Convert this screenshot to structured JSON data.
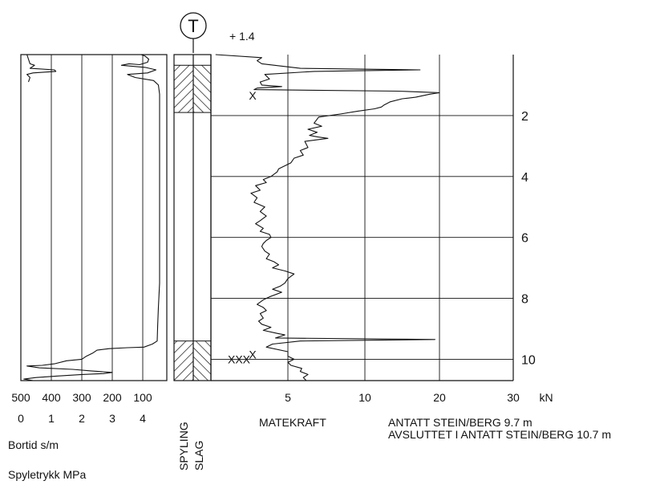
{
  "header": {
    "symbol": "T",
    "elevation": "+ 1.4"
  },
  "left_panel": {
    "bortid_ticks": [
      "500",
      "400",
      "300",
      "200",
      "100"
    ],
    "spyletrykk_ticks": [
      "0",
      "1",
      "2",
      "3",
      "4"
    ],
    "bortid_label": "Bortid s/m",
    "spyletrykk_label": "Spyletrykk MPa"
  },
  "middle_strip": {
    "label_spyling": "SPYLING",
    "label_slag": "SLAG",
    "hatched_intervals": [
      [
        0.35,
        1.9
      ],
      [
        9.4,
        10.7
      ]
    ]
  },
  "right_panel": {
    "x_ticks": [
      "5",
      "10",
      "20",
      "30"
    ],
    "x_unit": "kN",
    "x_label": "MATEKRAFT",
    "depth_ticks": [
      "2",
      "4",
      "6",
      "8",
      "10"
    ],
    "markers": [
      {
        "text": "X",
        "depth": 1.35
      },
      {
        "text": "X",
        "depth": 9.85
      },
      {
        "text": "XXX",
        "depth": 10.0
      }
    ],
    "notes": [
      "ANTATT STEIN/BERG 9.7 m",
      "AVSLUTTET I ANTATT STEIN/BERG 10.7 m"
    ]
  },
  "chart_data": [
    {
      "type": "line",
      "title": "",
      "xlabel": "MATEKRAFT",
      "x_unit": "kN",
      "ylabel": "",
      "x_ticks": [
        5,
        10,
        20,
        30
      ],
      "ylim": [
        0,
        10.7
      ],
      "y_inverted": true,
      "series": [
        {
          "points": [
            [
              0.3,
              0.0
            ],
            [
              3.3,
              0.1
            ],
            [
              3.0,
              0.2
            ],
            [
              3.3,
              0.3
            ],
            [
              5.8,
              0.45
            ],
            [
              17.4,
              0.5
            ],
            [
              6.7,
              0.55
            ],
            [
              3.5,
              0.65
            ],
            [
              3.8,
              0.8
            ],
            [
              3.2,
              0.9
            ],
            [
              3.3,
              1.0
            ],
            [
              4.6,
              1.05
            ],
            [
              3.0,
              1.1
            ],
            [
              2.8,
              1.15
            ],
            [
              14.4,
              1.2
            ],
            [
              20.0,
              1.25
            ],
            [
              18.7,
              1.3
            ],
            [
              16.8,
              1.4
            ],
            [
              15.0,
              1.45
            ],
            [
              13.4,
              1.55
            ],
            [
              12.6,
              1.65
            ],
            [
              12.2,
              1.72
            ],
            [
              11.3,
              1.78
            ],
            [
              9.5,
              1.86
            ],
            [
              8.4,
              1.95
            ],
            [
              7.0,
              2.05
            ],
            [
              6.7,
              2.25
            ],
            [
              7.2,
              2.35
            ],
            [
              6.3,
              2.45
            ],
            [
              6.9,
              2.55
            ],
            [
              6.4,
              2.65
            ],
            [
              6.9,
              2.7
            ],
            [
              7.6,
              2.75
            ],
            [
              6.1,
              2.85
            ],
            [
              6.3,
              3.05
            ],
            [
              5.8,
              3.15
            ],
            [
              6.0,
              3.3
            ],
            [
              5.4,
              3.4
            ],
            [
              5.2,
              3.55
            ],
            [
              4.8,
              3.65
            ],
            [
              4.4,
              3.75
            ],
            [
              4.3,
              3.85
            ],
            [
              3.9,
              4.0
            ],
            [
              3.4,
              4.1
            ],
            [
              3.6,
              4.2
            ],
            [
              2.9,
              4.3
            ],
            [
              3.2,
              4.45
            ],
            [
              2.6,
              4.55
            ],
            [
              3.0,
              4.7
            ],
            [
              2.8,
              4.85
            ],
            [
              3.5,
              5.0
            ],
            [
              3.2,
              5.15
            ],
            [
              3.6,
              5.3
            ],
            [
              3.2,
              5.45
            ],
            [
              2.9,
              5.55
            ],
            [
              3.4,
              5.7
            ],
            [
              3.2,
              5.8
            ],
            [
              3.8,
              5.9
            ],
            [
              3.9,
              6.0
            ],
            [
              3.6,
              6.1
            ],
            [
              3.4,
              6.2
            ],
            [
              3.3,
              6.3
            ],
            [
              3.5,
              6.45
            ],
            [
              3.8,
              6.55
            ],
            [
              3.6,
              6.7
            ],
            [
              4.1,
              6.8
            ],
            [
              4.4,
              6.9
            ],
            [
              4.0,
              7.0
            ],
            [
              4.8,
              7.1
            ],
            [
              5.4,
              7.2
            ],
            [
              5.0,
              7.35
            ],
            [
              4.8,
              7.5
            ],
            [
              4.5,
              7.6
            ],
            [
              4.0,
              7.7
            ],
            [
              4.6,
              7.8
            ],
            [
              3.8,
              7.95
            ],
            [
              3.4,
              8.05
            ],
            [
              3.0,
              8.2
            ],
            [
              3.4,
              8.3
            ],
            [
              3.6,
              8.4
            ],
            [
              3.2,
              8.5
            ],
            [
              3.4,
              8.65
            ],
            [
              3.1,
              8.75
            ],
            [
              3.3,
              8.85
            ],
            [
              3.9,
              8.95
            ],
            [
              3.4,
              9.05
            ],
            [
              4.3,
              9.15
            ],
            [
              4.8,
              9.2
            ],
            [
              4.2,
              9.3
            ],
            [
              19.4,
              9.35
            ],
            [
              5.8,
              9.4
            ],
            [
              4.0,
              9.5
            ],
            [
              3.6,
              9.6
            ],
            [
              5.0,
              9.75
            ],
            [
              5.0,
              9.9
            ],
            [
              5.4,
              10.0
            ],
            [
              5.0,
              10.1
            ],
            [
              5.2,
              10.2
            ],
            [
              5.9,
              10.3
            ],
            [
              5.8,
              10.4
            ],
            [
              6.3,
              10.5
            ],
            [
              6.0,
              10.6
            ],
            [
              6.2,
              10.7
            ]
          ]
        }
      ]
    },
    {
      "type": "line",
      "title": "",
      "xlabel": "Bortid s/m",
      "x_ticks": [
        500,
        400,
        300,
        200,
        100
      ],
      "x_reversed": true,
      "ylim": [
        0,
        10.7
      ],
      "y_inverted": true,
      "series": [
        {
          "points": [
            [
              105,
              0.0
            ],
            [
              90,
              0.05
            ],
            [
              75,
              0.15
            ],
            [
              80,
              0.25
            ],
            [
              110,
              0.33
            ],
            [
              145,
              0.3
            ],
            [
              170,
              0.35
            ],
            [
              90,
              0.42
            ],
            [
              45,
              0.5
            ],
            [
              80,
              0.6
            ],
            [
              150,
              0.65
            ],
            [
              125,
              0.75
            ],
            [
              55,
              0.85
            ],
            [
              35,
              1.0
            ],
            [
              30,
              1.3
            ],
            [
              30,
              2.0
            ],
            [
              30,
              4.0
            ],
            [
              30,
              6.0
            ],
            [
              30,
              7.5
            ],
            [
              35,
              8.3
            ],
            [
              38,
              8.9
            ],
            [
              40,
              9.4
            ],
            [
              60,
              9.5
            ],
            [
              95,
              9.6
            ],
            [
              150,
              9.62
            ],
            [
              210,
              9.65
            ],
            [
              250,
              9.7
            ],
            [
              265,
              9.8
            ],
            [
              285,
              9.9
            ],
            [
              300,
              10.0
            ],
            [
              350,
              10.05
            ],
            [
              390,
              10.15
            ],
            [
              430,
              10.2
            ],
            [
              480,
              10.22
            ],
            [
              440,
              10.28
            ],
            [
              330,
              10.33
            ],
            [
              270,
              10.38
            ],
            [
              200,
              10.43
            ],
            [
              230,
              10.47
            ],
            [
              300,
              10.5
            ],
            [
              380,
              10.55
            ],
            [
              450,
              10.6
            ],
            [
              490,
              10.65
            ],
            [
              460,
              10.7
            ]
          ]
        },
        {
          "points": [
            [
              480,
              0.0
            ],
            [
              470,
              0.3
            ],
            [
              455,
              0.35
            ],
            [
              470,
              0.45
            ],
            [
              390,
              0.5
            ],
            [
              385,
              0.55
            ],
            [
              460,
              0.6
            ],
            [
              480,
              0.65
            ],
            [
              470,
              0.75
            ],
            [
              475,
              0.9
            ]
          ]
        }
      ]
    }
  ]
}
